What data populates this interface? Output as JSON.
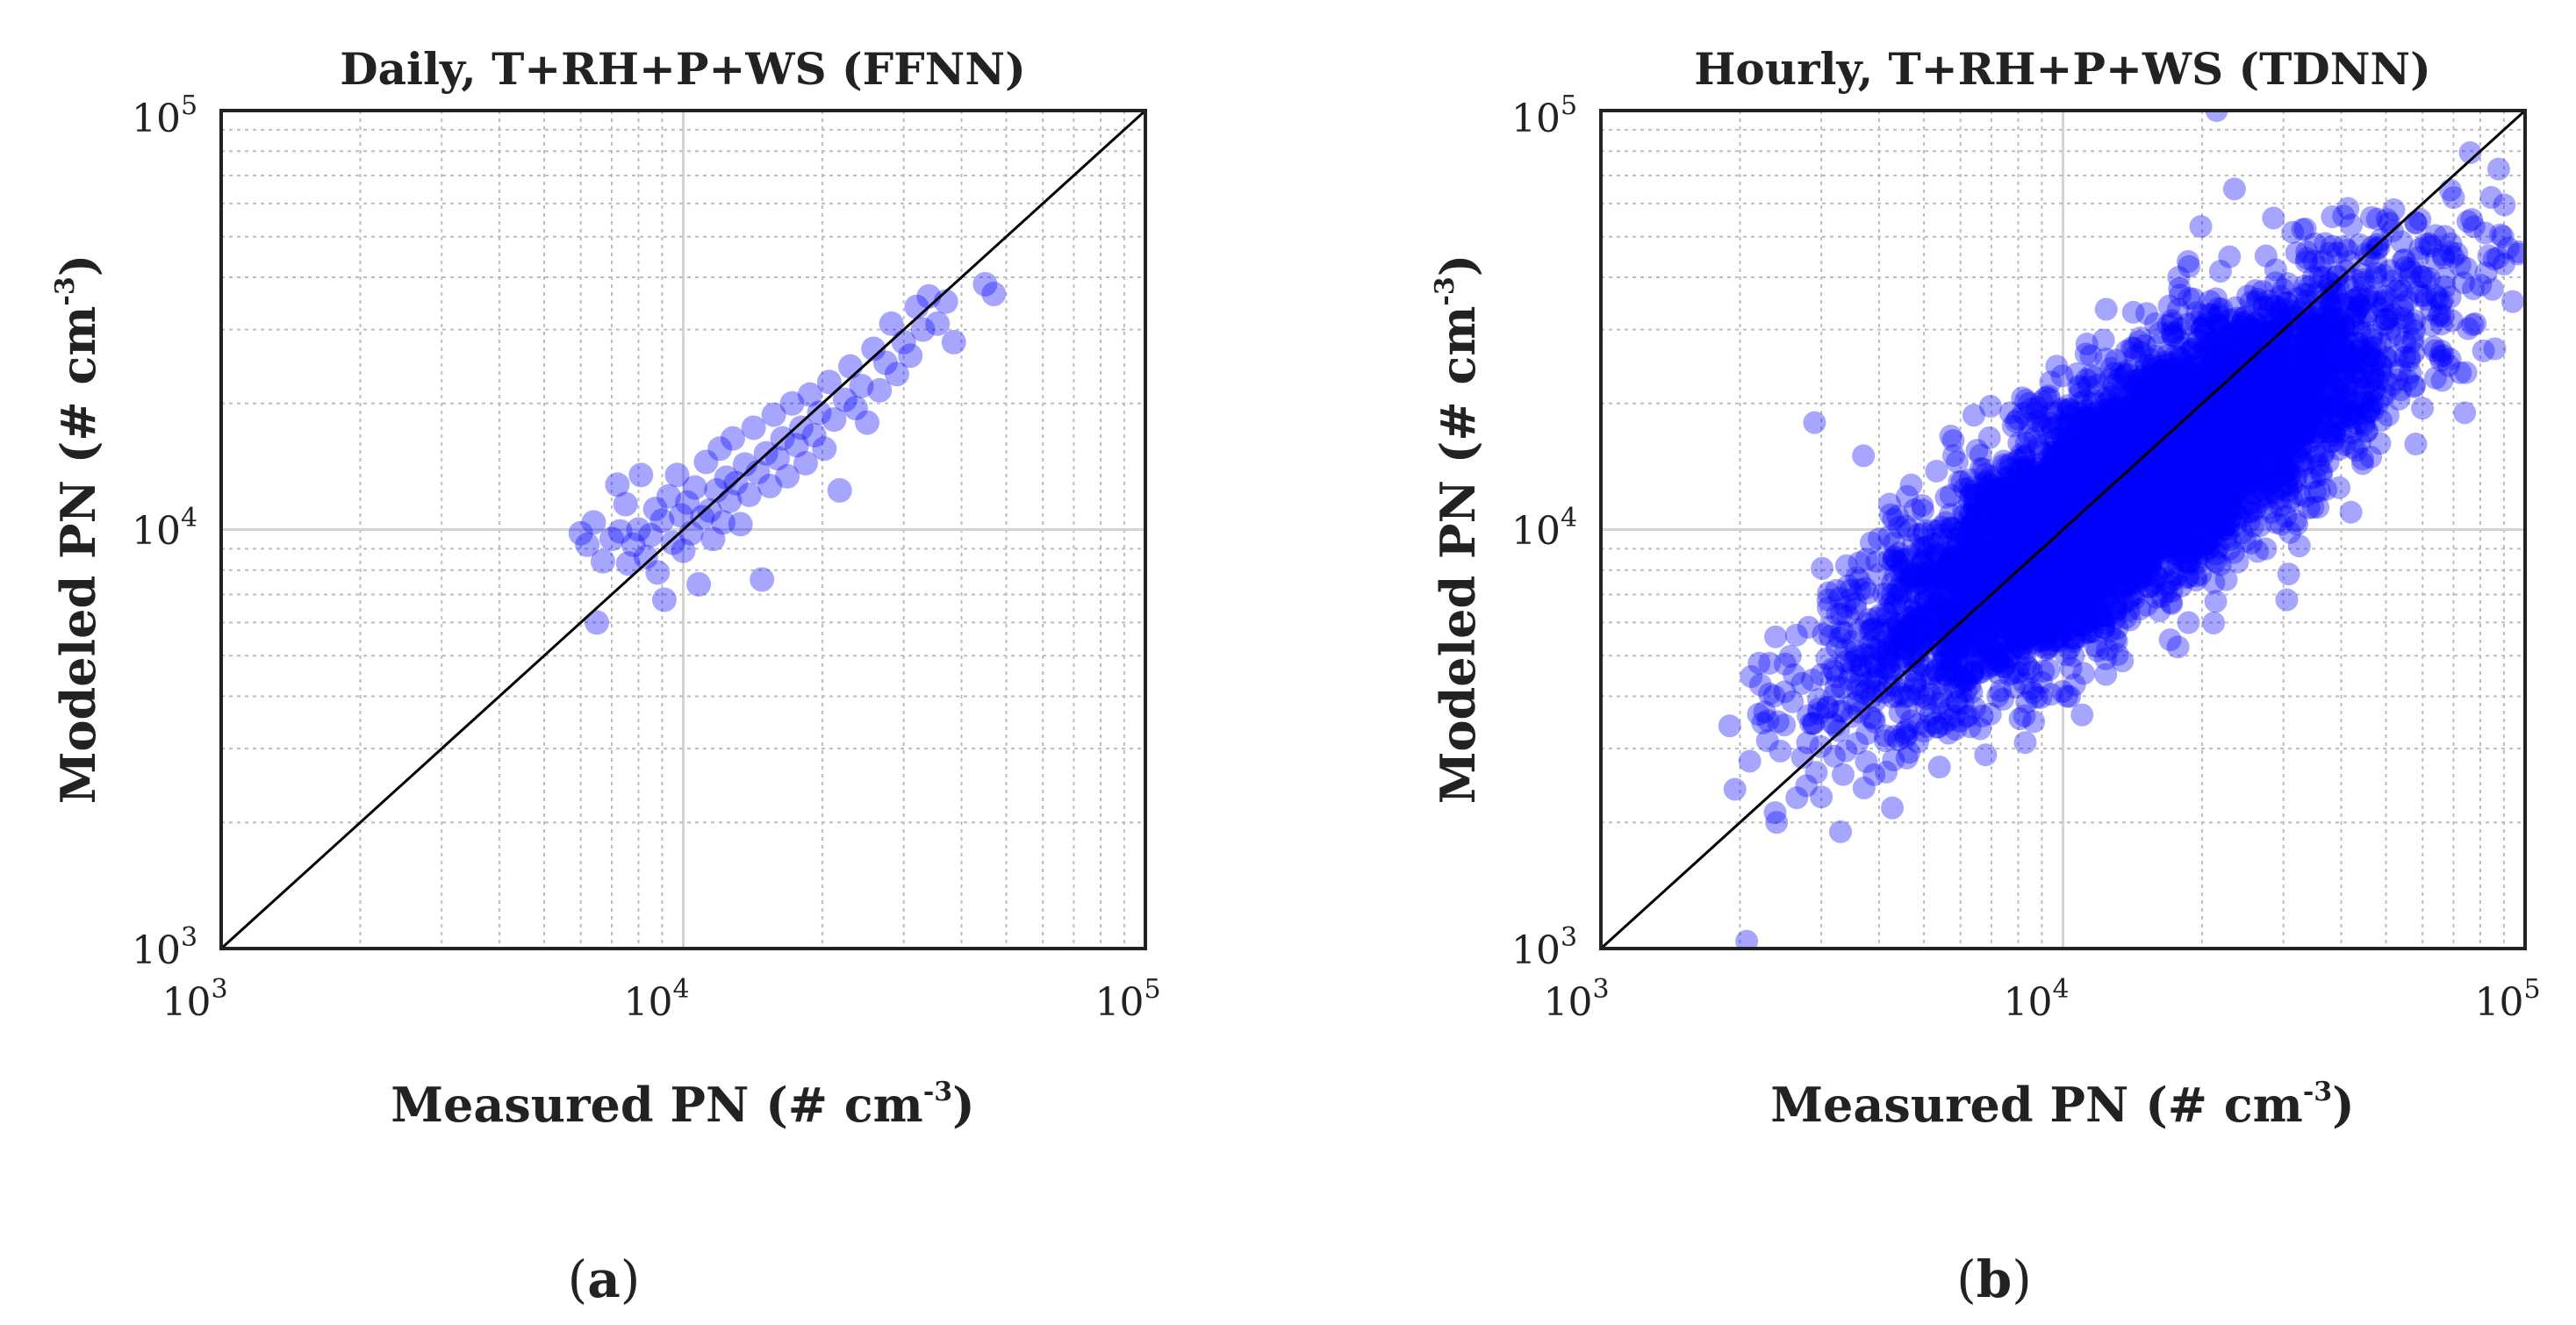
{
  "chart_data": [
    {
      "panel": "(a)",
      "panel_letter": "a",
      "type": "scatter",
      "title": "Daily, T+RH+P+WS (FFNN)",
      "xlabel": "Measured PN (# cm",
      "xlabel_exp": "-3",
      "ylabel": "Modeled PN (# cm",
      "ylabel_exp": "-3",
      "xscale": "log",
      "yscale": "log",
      "xlim": [
        1000,
        100000
      ],
      "ylim": [
        1000,
        100000
      ],
      "x_ticks": [
        "10",
        "10",
        "10"
      ],
      "x_tick_exps": [
        "3",
        "4",
        "5"
      ],
      "y_ticks": [
        "10",
        "10",
        "10"
      ],
      "y_tick_exps": [
        "3",
        "4",
        "5"
      ],
      "grid": true,
      "reference_line": "1:1",
      "marker_color": "#0000ff",
      "marker_alpha": 0.35,
      "points": [
        {
          "x": 6000,
          "y": 9800
        },
        {
          "x": 6200,
          "y": 9200
        },
        {
          "x": 6400,
          "y": 10400
        },
        {
          "x": 6500,
          "y": 6000
        },
        {
          "x": 6700,
          "y": 8400
        },
        {
          "x": 7000,
          "y": 9500
        },
        {
          "x": 7200,
          "y": 12800
        },
        {
          "x": 7300,
          "y": 9900
        },
        {
          "x": 7500,
          "y": 11500
        },
        {
          "x": 7600,
          "y": 8300
        },
        {
          "x": 7800,
          "y": 9200
        },
        {
          "x": 8000,
          "y": 10000
        },
        {
          "x": 8100,
          "y": 13500
        },
        {
          "x": 8300,
          "y": 8600
        },
        {
          "x": 8500,
          "y": 9700
        },
        {
          "x": 8700,
          "y": 11200
        },
        {
          "x": 8800,
          "y": 7900
        },
        {
          "x": 9000,
          "y": 10500
        },
        {
          "x": 9100,
          "y": 6800
        },
        {
          "x": 9300,
          "y": 12000
        },
        {
          "x": 9500,
          "y": 9300
        },
        {
          "x": 9700,
          "y": 13500
        },
        {
          "x": 9900,
          "y": 10800
        },
        {
          "x": 10000,
          "y": 8900
        },
        {
          "x": 10200,
          "y": 11600
        },
        {
          "x": 10400,
          "y": 9800
        },
        {
          "x": 10600,
          "y": 12600
        },
        {
          "x": 10800,
          "y": 7400
        },
        {
          "x": 11000,
          "y": 10700
        },
        {
          "x": 11200,
          "y": 14500
        },
        {
          "x": 11400,
          "y": 11100
        },
        {
          "x": 11600,
          "y": 9500
        },
        {
          "x": 11800,
          "y": 12400
        },
        {
          "x": 12000,
          "y": 15600
        },
        {
          "x": 12200,
          "y": 10400
        },
        {
          "x": 12400,
          "y": 13300
        },
        {
          "x": 12600,
          "y": 11700
        },
        {
          "x": 12800,
          "y": 16500
        },
        {
          "x": 13000,
          "y": 12900
        },
        {
          "x": 13300,
          "y": 10300
        },
        {
          "x": 13600,
          "y": 14300
        },
        {
          "x": 13900,
          "y": 12100
        },
        {
          "x": 14200,
          "y": 17500
        },
        {
          "x": 14500,
          "y": 13700
        },
        {
          "x": 14800,
          "y": 7600
        },
        {
          "x": 15100,
          "y": 15200
        },
        {
          "x": 15400,
          "y": 12700
        },
        {
          "x": 15700,
          "y": 18800
        },
        {
          "x": 16000,
          "y": 14800
        },
        {
          "x": 16400,
          "y": 16500
        },
        {
          "x": 16800,
          "y": 13400
        },
        {
          "x": 17200,
          "y": 20000
        },
        {
          "x": 17600,
          "y": 15900
        },
        {
          "x": 18000,
          "y": 17500
        },
        {
          "x": 18400,
          "y": 14400
        },
        {
          "x": 18800,
          "y": 21000
        },
        {
          "x": 19200,
          "y": 16800
        },
        {
          "x": 19700,
          "y": 19000
        },
        {
          "x": 20200,
          "y": 15600
        },
        {
          "x": 20700,
          "y": 22500
        },
        {
          "x": 21200,
          "y": 18300
        },
        {
          "x": 21800,
          "y": 12400
        },
        {
          "x": 22400,
          "y": 20400
        },
        {
          "x": 23000,
          "y": 24500
        },
        {
          "x": 23600,
          "y": 19500
        },
        {
          "x": 24300,
          "y": 22000
        },
        {
          "x": 25000,
          "y": 18000
        },
        {
          "x": 25800,
          "y": 27000
        },
        {
          "x": 26600,
          "y": 21500
        },
        {
          "x": 27400,
          "y": 25000
        },
        {
          "x": 28200,
          "y": 31000
        },
        {
          "x": 29000,
          "y": 23500
        },
        {
          "x": 30000,
          "y": 28000
        },
        {
          "x": 31000,
          "y": 26000
        },
        {
          "x": 32000,
          "y": 34000
        },
        {
          "x": 33000,
          "y": 30000
        },
        {
          "x": 34000,
          "y": 36000
        },
        {
          "x": 35500,
          "y": 31000
        },
        {
          "x": 37000,
          "y": 35000
        },
        {
          "x": 38500,
          "y": 28000
        },
        {
          "x": 45000,
          "y": 38500
        },
        {
          "x": 47000,
          "y": 36500
        }
      ]
    },
    {
      "panel": "(b)",
      "panel_letter": "b",
      "type": "scatter",
      "title": "Hourly, T+RH+P+WS (TDNN)",
      "xlabel": "Measured PN (# cm",
      "xlabel_exp": "-3",
      "ylabel": "Modeled PN (# cm",
      "ylabel_exp": "-3",
      "xscale": "log",
      "yscale": "log",
      "xlim": [
        1000,
        100000
      ],
      "ylim": [
        1000,
        100000
      ],
      "x_ticks": [
        "10",
        "10",
        "10"
      ],
      "x_tick_exps": [
        "3",
        "4",
        "5"
      ],
      "y_ticks": [
        "10",
        "10",
        "10"
      ],
      "y_tick_exps": [
        "3",
        "4",
        "5"
      ],
      "grid": true,
      "reference_line": "1:1",
      "marker_color": "#0000ff",
      "marker_alpha": 0.35,
      "points": [
        {
          "x": 1900,
          "y": 3400
        },
        {
          "x": 1950,
          "y": 2400
        },
        {
          "x": 2100,
          "y": 2800
        },
        {
          "x": 2200,
          "y": 4800
        },
        {
          "x": 2300,
          "y": 3500
        },
        {
          "x": 2400,
          "y": 2000
        },
        {
          "x": 2500,
          "y": 4100
        },
        {
          "x": 2650,
          "y": 5600
        },
        {
          "x": 2800,
          "y": 3100
        },
        {
          "x": 2900,
          "y": 18000
        },
        {
          "x": 3000,
          "y": 2300
        },
        {
          "x": 3100,
          "y": 6800
        },
        {
          "x": 3200,
          "y": 4600
        },
        {
          "x": 3300,
          "y": 1900
        },
        {
          "x": 3400,
          "y": 8200
        },
        {
          "x": 3500,
          "y": 5400
        },
        {
          "x": 3600,
          "y": 3900
        },
        {
          "x": 3700,
          "y": 15000
        },
        {
          "x": 3800,
          "y": 6100
        },
        {
          "x": 3900,
          "y": 2600
        },
        {
          "x": 4000,
          "y": 9500
        },
        {
          "x": 4200,
          "y": 4800
        },
        {
          "x": 4400,
          "y": 7200
        },
        {
          "x": 4600,
          "y": 12000
        },
        {
          "x": 4800,
          "y": 5600
        },
        {
          "x": 5000,
          "y": 3300
        },
        {
          "x": 5300,
          "y": 8300
        },
        {
          "x": 5600,
          "y": 6400
        },
        {
          "x": 5900,
          "y": 14500
        },
        {
          "x": 6200,
          "y": 5200
        },
        {
          "x": 6500,
          "y": 9800
        },
        {
          "x": 6800,
          "y": 2900
        },
        {
          "x": 7100,
          "y": 11800
        },
        {
          "x": 7400,
          "y": 7700
        },
        {
          "x": 7700,
          "y": 19000
        },
        {
          "x": 8000,
          "y": 10200
        },
        {
          "x": 8300,
          "y": 5200
        },
        {
          "x": 8600,
          "y": 13500
        },
        {
          "x": 9000,
          "y": 8800
        },
        {
          "x": 9400,
          "y": 22500
        },
        {
          "x": 9800,
          "y": 11000
        },
        {
          "x": 10200,
          "y": 4000
        },
        {
          "x": 10600,
          "y": 15500
        },
        {
          "x": 11000,
          "y": 9600
        },
        {
          "x": 11500,
          "y": 26000
        },
        {
          "x": 12000,
          "y": 13000
        },
        {
          "x": 12500,
          "y": 7000
        },
        {
          "x": 13000,
          "y": 18500
        },
        {
          "x": 13600,
          "y": 11500
        },
        {
          "x": 14200,
          "y": 33000
        },
        {
          "x": 14800,
          "y": 16500
        },
        {
          "x": 15500,
          "y": 9800
        },
        {
          "x": 16200,
          "y": 22000
        },
        {
          "x": 17000,
          "y": 14000
        },
        {
          "x": 17800,
          "y": 40000
        },
        {
          "x": 18600,
          "y": 19500
        },
        {
          "x": 19500,
          "y": 8500
        },
        {
          "x": 20500,
          "y": 27000
        },
        {
          "x": 21500,
          "y": 100000
        },
        {
          "x": 22500,
          "y": 17500
        },
        {
          "x": 23500,
          "y": 65000
        },
        {
          "x": 24500,
          "y": 31000
        },
        {
          "x": 25500,
          "y": 12500
        },
        {
          "x": 26500,
          "y": 23500
        },
        {
          "x": 27500,
          "y": 45000
        },
        {
          "x": 28500,
          "y": 19000
        },
        {
          "x": 29500,
          "y": 36000
        },
        {
          "x": 30500,
          "y": 6800
        },
        {
          "x": 31500,
          "y": 27500
        },
        {
          "x": 33000,
          "y": 52000
        },
        {
          "x": 34500,
          "y": 21500
        },
        {
          "x": 36000,
          "y": 40000
        },
        {
          "x": 37500,
          "y": 14500
        },
        {
          "x": 39000,
          "y": 31000
        },
        {
          "x": 40500,
          "y": 56000
        },
        {
          "x": 42000,
          "y": 11000
        },
        {
          "x": 44000,
          "y": 25000
        },
        {
          "x": 46000,
          "y": 45000
        },
        {
          "x": 48000,
          "y": 20000
        },
        {
          "x": 50000,
          "y": 36000
        },
        {
          "x": 52000,
          "y": 58000
        },
        {
          "x": 55000,
          "y": 28000
        },
        {
          "x": 58000,
          "y": 16000
        },
        {
          "x": 61000,
          "y": 48000
        },
        {
          "x": 64000,
          "y": 23000
        },
        {
          "x": 67000,
          "y": 38000
        },
        {
          "x": 70000,
          "y": 62000
        },
        {
          "x": 74000,
          "y": 19000
        },
        {
          "x": 78000,
          "y": 31000
        },
        {
          "x": 82000,
          "y": 51000
        },
        {
          "x": 86000,
          "y": 27000
        },
        {
          "x": 90000,
          "y": 43000
        },
        {
          "x": 94000,
          "y": 35000
        },
        {
          "x": 97000,
          "y": 46000
        }
      ],
      "dense_cloud": {
        "count": 6000,
        "log_center_x": 4.15,
        "log_center_y": 4.1,
        "slope": 0.82,
        "spread_along": 0.34,
        "spread_across": 0.11
      }
    }
  ]
}
